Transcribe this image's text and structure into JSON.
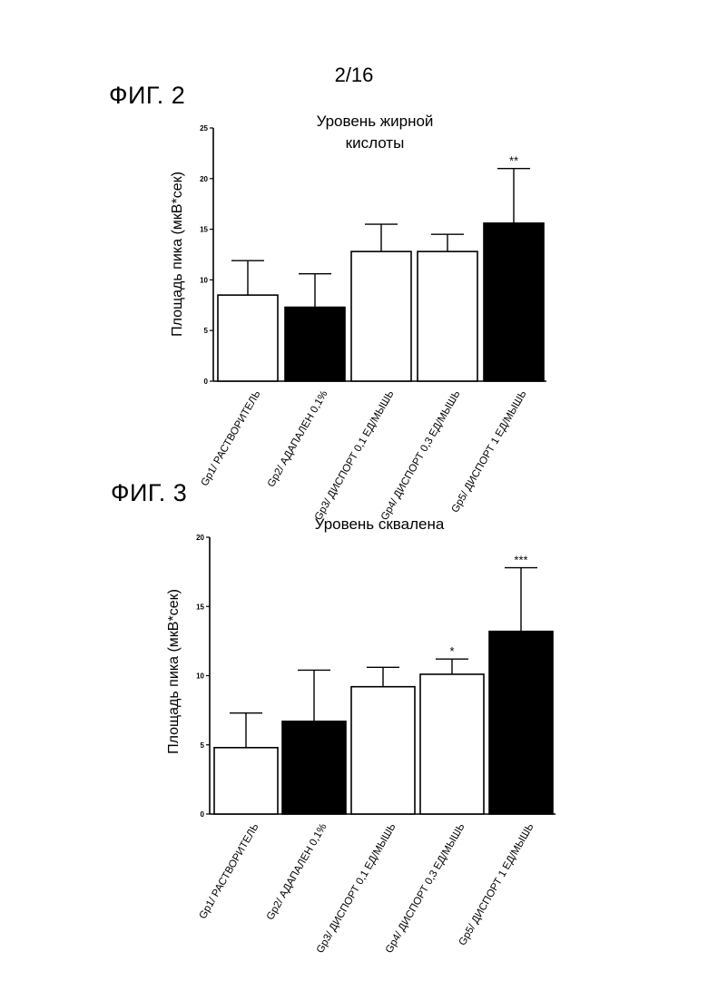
{
  "page_number": "2/16",
  "figures": [
    {
      "label": "ФИГ. 2"
    },
    {
      "label": "ФИГ. 3"
    }
  ],
  "chart_data": [
    {
      "type": "bar",
      "title_lines": [
        "Уровень жирной",
        "кислоты"
      ],
      "ylabel": "Площадь пика (мкВ*сек)",
      "xlabel": "",
      "ylim": [
        0,
        25
      ],
      "yticks": [
        0,
        5,
        10,
        15,
        20,
        25
      ],
      "categories": [
        "Gp1/ РАСТВОРИТЕЛЬ",
        "Gp2/ АДАПАЛЕН 0,1%",
        "Gp3/ ДИСПОРТ 0,1 ЕД/МЫШЬ",
        "Gp4/ ДИСПОРТ 0,3 ЕД/МЫШЬ",
        "Gp5/ ДИСПОРТ 1 ЕД/МЫШЬ"
      ],
      "values": [
        8.5,
        7.3,
        12.8,
        12.8,
        15.6
      ],
      "error_upper": [
        11.9,
        10.6,
        15.5,
        14.5,
        21.0
      ],
      "bar_colors": [
        "#ffffff",
        "#000000",
        "#ffffff",
        "#ffffff",
        "#000000"
      ],
      "significance": [
        "",
        "",
        "",
        "",
        "**"
      ],
      "grid": false
    },
    {
      "type": "bar",
      "title_lines": [
        "Уровень сквалена"
      ],
      "ylabel": "Площадь пика (мкВ*сек)",
      "xlabel": "",
      "ylim": [
        0,
        20
      ],
      "yticks": [
        0,
        5,
        10,
        15,
        20
      ],
      "categories": [
        "Gp1/ РАСТВОРИТЕЛЬ",
        "Gp2/ АДАПАЛЕН 0,1%",
        "Gp3/ ДИСПОРТ 0,1 ЕД/МЫШЬ",
        "Gp4/ ДИСПОРТ 0,3 ЕД/МЫШЬ",
        "Gp5/ ДИСПОРТ 1 ЕД/МЫШЬ"
      ],
      "values": [
        4.8,
        6.7,
        9.2,
        10.1,
        13.2
      ],
      "error_upper": [
        7.3,
        10.4,
        10.6,
        11.2,
        17.8
      ],
      "bar_colors": [
        "#ffffff",
        "#000000",
        "#ffffff",
        "#ffffff",
        "#000000"
      ],
      "significance": [
        "",
        "",
        "",
        "*",
        "***"
      ],
      "grid": false
    }
  ]
}
